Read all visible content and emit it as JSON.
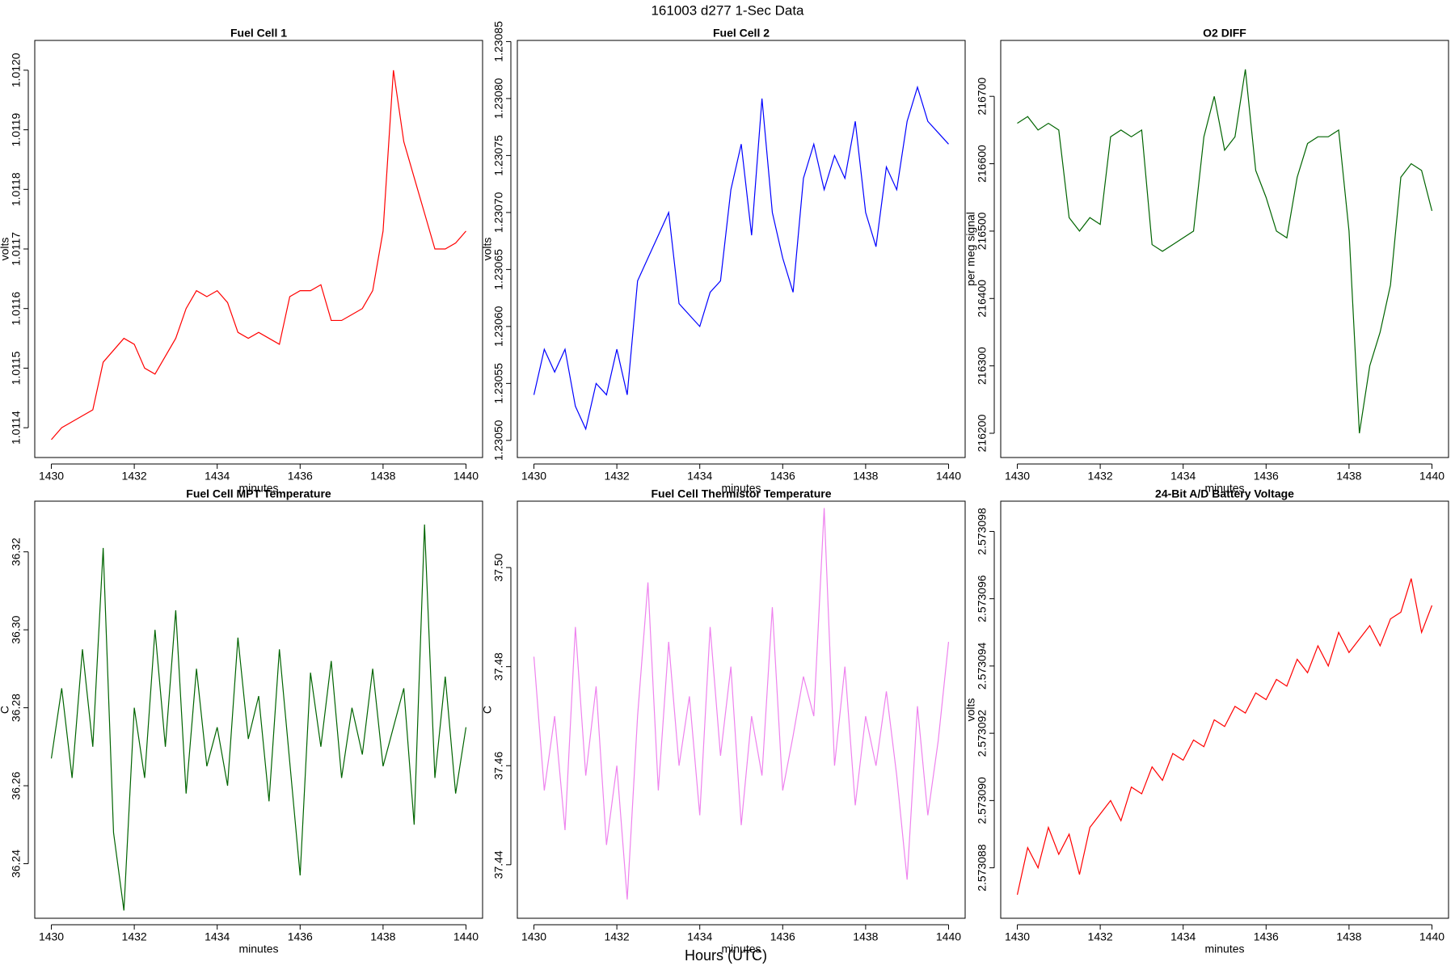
{
  "title": "161003   d277   1-Sec Data",
  "xlabel": "Hours (UTC)",
  "chart_data": [
    {
      "type": "line",
      "title": "Fuel Cell 1",
      "xlabel": "minutes",
      "ylabel": "volts",
      "color": "#ff0000",
      "x": [
        1430,
        1430.25,
        1430.5,
        1430.75,
        1431,
        1431.25,
        1431.5,
        1431.75,
        1432,
        1432.25,
        1432.5,
        1432.75,
        1433,
        1433.25,
        1433.5,
        1433.75,
        1434,
        1434.25,
        1434.5,
        1434.75,
        1435,
        1435.25,
        1435.5,
        1435.75,
        1436,
        1436.25,
        1436.5,
        1436.75,
        1437,
        1437.25,
        1437.5,
        1437.75,
        1438,
        1438.25,
        1438.5,
        1438.75,
        1439,
        1439.25,
        1439.5,
        1439.75,
        1440
      ],
      "values": [
        1.01138,
        1.0114,
        1.01141,
        1.01142,
        1.01143,
        1.01151,
        1.01153,
        1.01155,
        1.01154,
        1.0115,
        1.01149,
        1.01152,
        1.01155,
        1.0116,
        1.01163,
        1.01162,
        1.01163,
        1.01161,
        1.01156,
        1.01155,
        1.01156,
        1.01155,
        1.01154,
        1.01162,
        1.01163,
        1.01163,
        1.01164,
        1.01158,
        1.01158,
        1.01159,
        1.0116,
        1.01163,
        1.01173,
        1.012,
        1.01188,
        1.01182,
        1.01176,
        1.0117,
        1.0117,
        1.01171,
        1.01173
      ],
      "xlim": [
        1429.6,
        1440.4
      ],
      "ylim": [
        1.01135,
        1.01205
      ],
      "xticks": [
        1430,
        1432,
        1434,
        1436,
        1438,
        1440
      ],
      "yticks": [
        1.0114,
        1.0115,
        1.0116,
        1.0117,
        1.0118,
        1.0119,
        {
          "value": 1.012,
          "label": "1.0120"
        }
      ]
    },
    {
      "type": "line",
      "title": "Fuel Cell 2",
      "xlabel": "minutes",
      "ylabel": "volts",
      "color": "#0000ff",
      "x": [
        1430,
        1430.25,
        1430.5,
        1430.75,
        1431,
        1431.25,
        1431.5,
        1431.75,
        1432,
        1432.25,
        1432.5,
        1432.75,
        1433,
        1433.25,
        1433.5,
        1433.75,
        1434,
        1434.25,
        1434.5,
        1434.75,
        1435,
        1435.25,
        1435.5,
        1435.75,
        1436,
        1436.25,
        1436.5,
        1436.75,
        1437,
        1437.25,
        1437.5,
        1437.75,
        1438,
        1438.25,
        1438.5,
        1438.75,
        1439,
        1439.25,
        1439.5,
        1439.75,
        1440
      ],
      "values": [
        1.23054,
        1.23058,
        1.23056,
        1.23058,
        1.23053,
        1.23051,
        1.23055,
        1.23054,
        1.23058,
        1.23054,
        1.23064,
        1.23066,
        1.23068,
        1.2307,
        1.23062,
        1.23061,
        1.2306,
        1.23063,
        1.23064,
        1.23072,
        1.23076,
        1.23068,
        1.2308,
        1.2307,
        1.23066,
        1.23063,
        1.23073,
        1.23076,
        1.23072,
        1.23075,
        1.23073,
        1.23078,
        1.2307,
        1.23067,
        1.23074,
        1.23072,
        1.23078,
        1.23081,
        1.23078,
        1.23077,
        1.23076
      ],
      "xlim": [
        1429.6,
        1440.4
      ],
      "ylim": [
        1.230485,
        1.230851
      ],
      "xticks": [
        1430,
        1432,
        1434,
        1436,
        1438,
        1440
      ],
      "yticks": [
        {
          "value": 1.2305,
          "label": "1.23050"
        },
        1.23055,
        {
          "value": 1.2306,
          "label": "1.23060"
        },
        1.23065,
        {
          "value": 1.2307,
          "label": "1.23070"
        },
        1.23075,
        {
          "value": 1.2308,
          "label": "1.23080"
        },
        1.23085
      ]
    },
    {
      "type": "line",
      "title": "O2 DIFF",
      "xlabel": "minutes",
      "ylabel": "per meg signal",
      "color": "#006400",
      "x": [
        1430,
        1430.25,
        1430.5,
        1430.75,
        1431,
        1431.25,
        1431.5,
        1431.75,
        1432,
        1432.25,
        1432.5,
        1432.75,
        1433,
        1433.25,
        1433.5,
        1433.75,
        1434,
        1434.25,
        1434.5,
        1434.75,
        1435,
        1435.25,
        1435.5,
        1435.75,
        1436,
        1436.25,
        1436.5,
        1436.75,
        1437,
        1437.25,
        1437.5,
        1437.75,
        1438,
        1438.25,
        1438.5,
        1438.75,
        1439,
        1439.25,
        1439.5,
        1439.75,
        1440
      ],
      "values": [
        216660,
        216670,
        216650,
        216660,
        216650,
        216520,
        216500,
        216520,
        216510,
        216640,
        216650,
        216640,
        216650,
        216480,
        216470,
        216480,
        216490,
        216500,
        216640,
        216700,
        216620,
        216640,
        216740,
        216590,
        216550,
        216500,
        216490,
        216580,
        216630,
        216640,
        216640,
        216650,
        216500,
        216200,
        216300,
        216350,
        216420,
        216580,
        216600,
        216590,
        216530
      ],
      "xlim": [
        1429.6,
        1440.4
      ],
      "ylim": [
        216164,
        216783
      ],
      "xticks": [
        1430,
        1432,
        1434,
        1436,
        1438,
        1440
      ],
      "yticks": [
        216200,
        216300,
        216400,
        216500,
        216600,
        216700
      ]
    },
    {
      "type": "line",
      "title": "Fuel Cell MPT Temperature",
      "xlabel": "minutes",
      "ylabel": "C",
      "color": "#006400",
      "x": [
        1430,
        1430.25,
        1430.5,
        1430.75,
        1431,
        1431.25,
        1431.5,
        1431.75,
        1432,
        1432.25,
        1432.5,
        1432.75,
        1433,
        1433.25,
        1433.5,
        1433.75,
        1434,
        1434.25,
        1434.5,
        1434.75,
        1435,
        1435.25,
        1435.5,
        1435.75,
        1436,
        1436.25,
        1436.5,
        1436.75,
        1437,
        1437.25,
        1437.5,
        1437.75,
        1438,
        1438.25,
        1438.5,
        1438.75,
        1439,
        1439.25,
        1439.5,
        1439.75,
        1440
      ],
      "values": [
        36.267,
        36.285,
        36.262,
        36.295,
        36.27,
        36.321,
        36.248,
        36.228,
        36.28,
        36.262,
        36.3,
        36.27,
        36.305,
        36.258,
        36.29,
        36.265,
        36.275,
        36.26,
        36.298,
        36.272,
        36.283,
        36.256,
        36.295,
        36.266,
        36.237,
        36.289,
        36.27,
        36.292,
        36.262,
        36.28,
        36.268,
        36.29,
        36.265,
        36.275,
        36.285,
        36.25,
        36.327,
        36.262,
        36.288,
        36.258,
        36.275
      ],
      "xlim": [
        1429.6,
        1440.4
      ],
      "ylim": [
        36.226,
        36.333
      ],
      "xticks": [
        1430,
        1432,
        1434,
        1436,
        1438,
        1440
      ],
      "yticks": [
        36.24,
        36.26,
        36.28,
        {
          "value": 36.3,
          "label": "36.30"
        },
        36.32
      ]
    },
    {
      "type": "line",
      "title": "Fuel Cell Thermistor Temperature",
      "xlabel": "minutes",
      "ylabel": "C",
      "color": "#ee82ee",
      "x": [
        1430,
        1430.25,
        1430.5,
        1430.75,
        1431,
        1431.25,
        1431.5,
        1431.75,
        1432,
        1432.25,
        1432.5,
        1432.75,
        1433,
        1433.25,
        1433.5,
        1433.75,
        1434,
        1434.25,
        1434.5,
        1434.75,
        1435,
        1435.25,
        1435.5,
        1435.75,
        1436,
        1436.25,
        1436.5,
        1436.75,
        1437,
        1437.25,
        1437.5,
        1437.75,
        1438,
        1438.25,
        1438.5,
        1438.75,
        1439,
        1439.25,
        1439.5,
        1439.75,
        1440
      ],
      "values": [
        37.482,
        37.455,
        37.47,
        37.447,
        37.488,
        37.458,
        37.476,
        37.444,
        37.46,
        37.433,
        37.47,
        37.497,
        37.455,
        37.485,
        37.46,
        37.474,
        37.45,
        37.488,
        37.462,
        37.48,
        37.448,
        37.47,
        37.458,
        37.492,
        37.455,
        37.466,
        37.478,
        37.47,
        37.512,
        37.46,
        37.48,
        37.452,
        37.47,
        37.46,
        37.475,
        37.458,
        37.437,
        37.472,
        37.45,
        37.465,
        37.485
      ],
      "xlim": [
        1429.6,
        1440.4
      ],
      "ylim": [
        37.4292,
        37.5134
      ],
      "xticks": [
        1430,
        1432,
        1434,
        1436,
        1438,
        1440
      ],
      "yticks": [
        37.44,
        37.46,
        37.48,
        {
          "value": 37.5,
          "label": "37.50"
        }
      ]
    },
    {
      "type": "line",
      "title": "24-Bit A/D Battery Voltage",
      "xlabel": "minutes",
      "ylabel": "volts",
      "color": "#ff0000",
      "x": [
        1430,
        1430.25,
        1430.5,
        1430.75,
        1431,
        1431.25,
        1431.5,
        1431.75,
        1432,
        1432.25,
        1432.5,
        1432.75,
        1433,
        1433.25,
        1433.5,
        1433.75,
        1434,
        1434.25,
        1434.5,
        1434.75,
        1435,
        1435.25,
        1435.5,
        1435.75,
        1436,
        1436.25,
        1436.5,
        1436.75,
        1437,
        1437.25,
        1437.5,
        1437.75,
        1438,
        1438.25,
        1438.5,
        1438.75,
        1439,
        1439.25,
        1439.5,
        1439.75,
        1440
      ],
      "values": [
        2.5730872,
        2.5730886,
        2.573088,
        2.5730892,
        2.5730884,
        2.573089,
        2.5730878,
        2.5730892,
        2.5730896,
        2.57309,
        2.5730894,
        2.5730904,
        2.5730902,
        2.573091,
        2.5730906,
        2.5730914,
        2.5730912,
        2.5730918,
        2.5730916,
        2.5730924,
        2.5730922,
        2.5730928,
        2.5730926,
        2.5730932,
        2.573093,
        2.5730936,
        2.5730934,
        2.5730942,
        2.5730938,
        2.5730946,
        2.573094,
        2.573095,
        2.5730944,
        2.5730948,
        2.5730952,
        2.5730946,
        2.5730954,
        2.5730956,
        2.5730966,
        2.573095,
        2.5730958
      ],
      "xlim": [
        1429.6,
        1440.4
      ],
      "ylim": [
        2.5730865,
        2.5730989
      ],
      "xticks": [
        1430,
        1432,
        1434,
        1436,
        1438,
        1440
      ],
      "yticks": [
        2.573088,
        {
          "value": 2.57309,
          "label": "2.573090"
        },
        2.573092,
        2.573094,
        2.573096,
        2.573098
      ]
    }
  ]
}
